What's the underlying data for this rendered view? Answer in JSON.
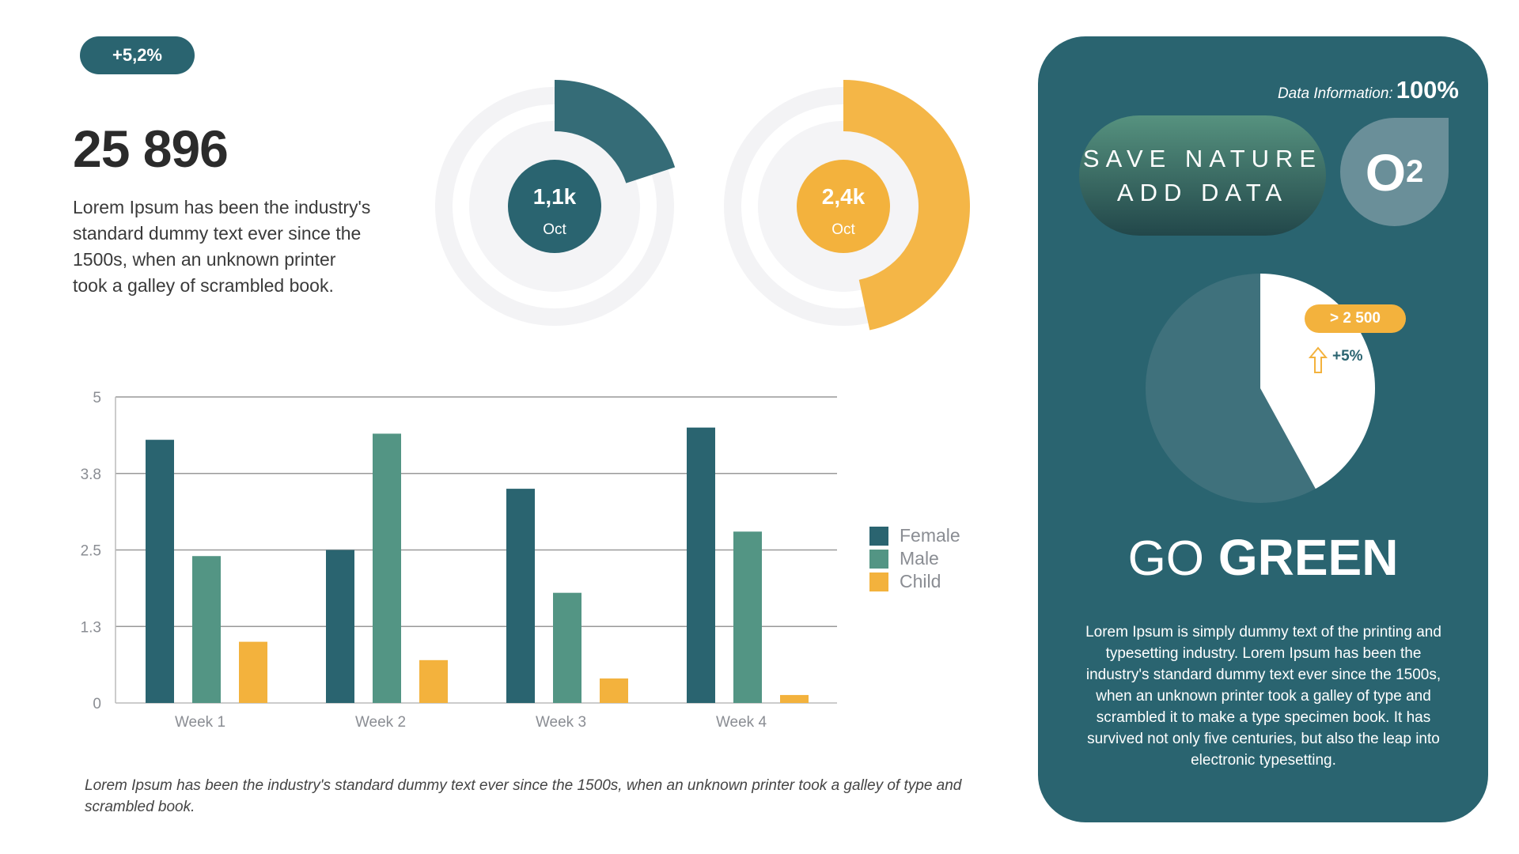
{
  "header": {
    "badge": "+5,2%",
    "big_number": "25 896",
    "intro": "Lorem Ipsum has been the industry's standard dummy text ever since the 1500s, when an unknown printer took a galley of scrambled book."
  },
  "donuts": [
    {
      "value": "1,1k",
      "label": "Oct",
      "color": "#2a6470",
      "fraction_degrees": 72
    },
    {
      "value": "2,4k",
      "label": "Oct",
      "color": "#f3b23d",
      "fraction_degrees": 168
    }
  ],
  "chart_data": {
    "type": "bar",
    "categories": [
      "Week 1",
      "Week 2",
      "Week 3",
      "Week 4"
    ],
    "series": [
      {
        "name": "Female",
        "color": "#2a6470",
        "values": [
          4.3,
          2.5,
          3.5,
          4.5
        ]
      },
      {
        "name": "Male",
        "color": "#539584",
        "values": [
          2.4,
          4.4,
          1.8,
          2.8
        ]
      },
      {
        "name": "Child",
        "color": "#f3b23d",
        "values": [
          1.0,
          0.7,
          0.4,
          0.13
        ]
      }
    ],
    "yticks": [
      {
        "value": 0,
        "label": "0"
      },
      {
        "value": 1.25,
        "label": "1.3"
      },
      {
        "value": 2.5,
        "label": "2.5"
      },
      {
        "value": 3.75,
        "label": "3.8"
      },
      {
        "value": 5,
        "label": "5"
      }
    ],
    "ylim": [
      0,
      5
    ],
    "grid": true,
    "legend": "right"
  },
  "caption": "Lorem Ipsum has been the industry's standard dummy text ever since the 1500s, when an unknown printer took a galley of type and scrambled book.",
  "panel": {
    "data_info_label": "Data Information:",
    "data_info_value": "100%",
    "pill_line1": "SAVE NATURE",
    "pill_line2": "ADD DATA",
    "o2_main": "O",
    "o2_sub": "2",
    "pie_white_percent": 42,
    "pie_badge": "> 2 500",
    "pie_change": "+5%",
    "go": "GO",
    "green": "GREEN",
    "text": "Lorem Ipsum is simply dummy text of the printing and typesetting industry. Lorem Ipsum has been the industry's standard dummy text ever since the 1500s, when an unknown printer took a galley of type and scrambled it to make a type specimen book. It has survived not only five centuries, but also the leap into electronic typesetting."
  }
}
